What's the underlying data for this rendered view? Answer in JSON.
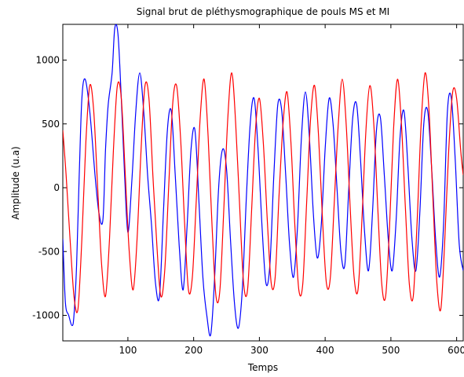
{
  "chart_data": {
    "type": "line",
    "title": "Signal brut de pléthysmographique de pouls MS et MI",
    "xlabel": "Temps",
    "ylabel": "Amplitude (u.a)",
    "xlim": [
      1,
      610
    ],
    "ylim": [
      -1200,
      1280
    ],
    "xticks": [
      100,
      200,
      300,
      400,
      500,
      600
    ],
    "xtick_labels": [
      "100",
      "200",
      "300",
      "400",
      "500",
      "600"
    ],
    "yticks": [
      -1000,
      -500,
      0,
      500,
      1000
    ],
    "ytick_labels": [
      "-1000",
      "-500",
      "0",
      "500",
      "1000"
    ],
    "grid": false,
    "legend": null,
    "series": [
      {
        "color": "#0000ff",
        "x": [
          1,
          5,
          10,
          15,
          18,
          22,
          26,
          30,
          35,
          42,
          50,
          56,
          62,
          66,
          70,
          76,
          80,
          85,
          90,
          95,
          100,
          106,
          112,
          118,
          124,
          130,
          136,
          142,
          148,
          154,
          160,
          166,
          172,
          178,
          184,
          190,
          196,
          202,
          208,
          214,
          220,
          226,
          232,
          238,
          244,
          250,
          256,
          262,
          268,
          274,
          280,
          286,
          292,
          298,
          304,
          310,
          316,
          322,
          328,
          334,
          340,
          346,
          352,
          358,
          364,
          370,
          376,
          382,
          388,
          394,
          400,
          406,
          412,
          418,
          424,
          430,
          436,
          442,
          448,
          454,
          460,
          466,
          472,
          478,
          484,
          490,
          496,
          502,
          508,
          514,
          520,
          526,
          532,
          538,
          544,
          550,
          556,
          562,
          568,
          574,
          580,
          586,
          592,
          598,
          604,
          610
        ],
        "y": [
          -400,
          -900,
          -1000,
          -1080,
          -1000,
          -600,
          100,
          700,
          850,
          600,
          100,
          -200,
          -250,
          300,
          650,
          900,
          1250,
          1200,
          700,
          100,
          -350,
          50,
          600,
          900,
          600,
          100,
          -300,
          -750,
          -850,
          -200,
          450,
          600,
          100,
          -450,
          -800,
          -300,
          300,
          450,
          -100,
          -700,
          -1000,
          -1150,
          -700,
          0,
          300,
          150,
          -400,
          -900,
          -1100,
          -800,
          -100,
          500,
          700,
          300,
          -300,
          -750,
          -600,
          100,
          650,
          600,
          100,
          -450,
          -700,
          -300,
          400,
          750,
          400,
          -200,
          -550,
          -300,
          300,
          700,
          500,
          0,
          -500,
          -600,
          0,
          550,
          650,
          200,
          -350,
          -650,
          -200,
          450,
          550,
          100,
          -400,
          -650,
          -250,
          400,
          600,
          150,
          -400,
          -650,
          -200,
          500,
          600,
          150,
          -400,
          -700,
          -300,
          600,
          700,
          200,
          -450,
          -650
        ]
      },
      {
        "color": "#ff0000",
        "x": [
          1,
          6,
          12,
          18,
          24,
          30,
          36,
          42,
          48,
          54,
          60,
          66,
          72,
          78,
          84,
          90,
          96,
          102,
          108,
          114,
          120,
          126,
          132,
          138,
          144,
          150,
          156,
          162,
          168,
          174,
          180,
          186,
          192,
          198,
          204,
          210,
          216,
          222,
          228,
          234,
          240,
          246,
          252,
          258,
          264,
          270,
          276,
          282,
          288,
          294,
          300,
          306,
          312,
          318,
          324,
          330,
          336,
          342,
          348,
          354,
          360,
          366,
          372,
          378,
          384,
          390,
          396,
          402,
          408,
          414,
          420,
          426,
          432,
          438,
          444,
          450,
          456,
          462,
          468,
          474,
          480,
          486,
          492,
          498,
          504,
          510,
          516,
          522,
          528,
          534,
          540,
          546,
          552,
          558,
          564,
          570,
          576,
          582,
          588,
          594,
          600,
          606,
          610
        ],
        "y": [
          450,
          100,
          -400,
          -850,
          -950,
          -400,
          350,
          800,
          600,
          0,
          -600,
          -850,
          -400,
          300,
          800,
          700,
          100,
          -500,
          -800,
          -400,
          300,
          800,
          700,
          100,
          -450,
          -850,
          -650,
          0,
          650,
          800,
          400,
          -250,
          -800,
          -700,
          -100,
          550,
          850,
          400,
          -300,
          -850,
          -800,
          -150,
          550,
          900,
          500,
          -150,
          -750,
          -800,
          -200,
          450,
          700,
          350,
          -250,
          -750,
          -700,
          -50,
          500,
          750,
          350,
          -300,
          -800,
          -750,
          -100,
          550,
          800,
          400,
          -250,
          -750,
          -700,
          -100,
          500,
          850,
          500,
          -150,
          -700,
          -800,
          -250,
          450,
          800,
          500,
          -150,
          -750,
          -850,
          -300,
          450,
          850,
          500,
          -150,
          -750,
          -850,
          -250,
          500,
          900,
          600,
          -100,
          -750,
          -950,
          -400,
          300,
          750,
          700,
          300,
          100
        ]
      }
    ]
  }
}
